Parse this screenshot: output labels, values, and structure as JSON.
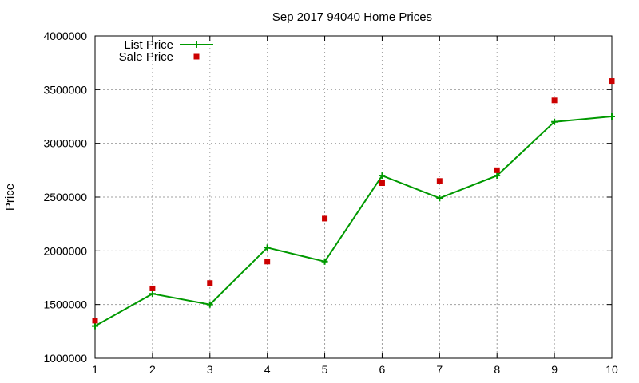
{
  "chart_data": {
    "type": "line",
    "title": "Sep 2017 94040 Home Prices",
    "xlabel": "",
    "ylabel": "Price",
    "xlim": [
      1,
      10
    ],
    "ylim": [
      1000000,
      4000000
    ],
    "x_ticks": [
      "1",
      "2",
      "3",
      "4",
      "5",
      "6",
      "7",
      "8",
      "9",
      "10"
    ],
    "y_ticks": [
      "1000000",
      "1500000",
      "2000000",
      "2500000",
      "3000000",
      "3500000",
      "4000000"
    ],
    "grid": true,
    "legend_position": "top-left",
    "series": [
      {
        "name": "List Price",
        "style": "line-with-plus-markers",
        "color": "#009900",
        "x": [
          1,
          2,
          3,
          4,
          5,
          6,
          7,
          8,
          9,
          10
        ],
        "y": [
          1300000,
          1600000,
          1500000,
          2030000,
          1900000,
          2700000,
          2490000,
          2700000,
          3200000,
          3250000
        ]
      },
      {
        "name": "Sale Price",
        "style": "square-markers",
        "color": "#cc0000",
        "x": [
          1,
          2,
          3,
          4,
          5,
          6,
          7,
          8,
          9,
          10
        ],
        "y": [
          1350000,
          1650000,
          1700000,
          1900000,
          2300000,
          2630000,
          2650000,
          2750000,
          3400000,
          3580000
        ]
      }
    ]
  }
}
